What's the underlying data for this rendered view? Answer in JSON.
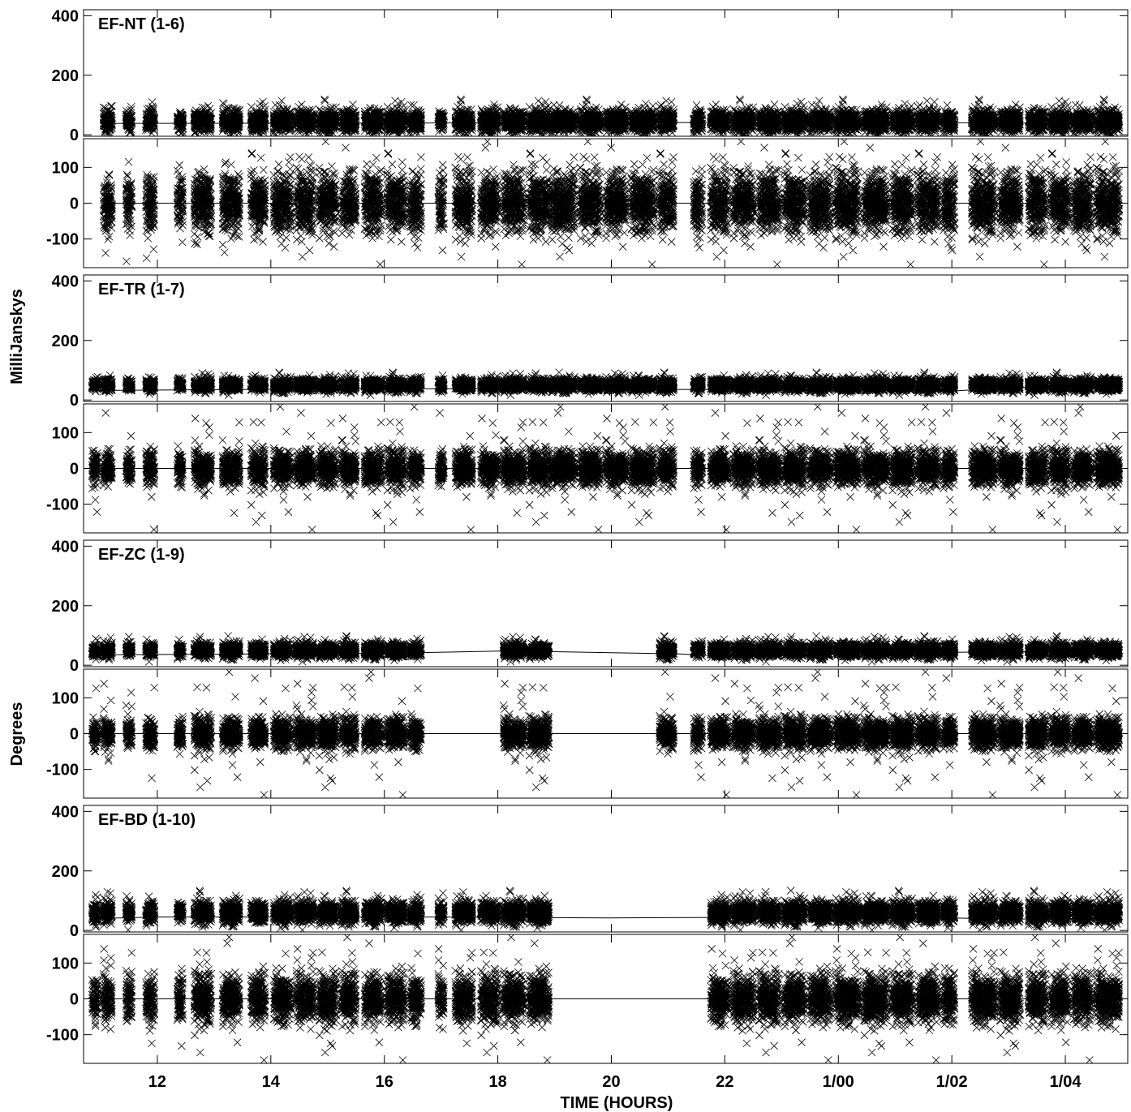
{
  "chart_data": {
    "type": "scatter",
    "xlabel": "TIME (HOURS)",
    "ylabel_amplitude": "MilliJanskys",
    "ylabel_phase": "Degrees",
    "x_unit": "hours",
    "xlim": [
      10.7,
      29.1
    ],
    "x_ticks": [
      {
        "value": 12,
        "label": "12"
      },
      {
        "value": 14,
        "label": "14"
      },
      {
        "value": 16,
        "label": "16"
      },
      {
        "value": 18,
        "label": "18"
      },
      {
        "value": 20,
        "label": "20"
      },
      {
        "value": 22,
        "label": "22"
      },
      {
        "value": 24,
        "label": "1/00"
      },
      {
        "value": 26,
        "label": "1/02"
      },
      {
        "value": 28,
        "label": "1/04"
      }
    ],
    "amp_ylim": [
      -5,
      420
    ],
    "amp_ticks": [
      {
        "value": 0,
        "label": "0"
      },
      {
        "value": 200,
        "label": "200"
      },
      {
        "value": 400,
        "label": "400"
      }
    ],
    "phase_ylim": [
      -180,
      180
    ],
    "phase_ticks": [
      {
        "value": -100,
        "label": "-100"
      },
      {
        "value": 0,
        "label": "0"
      },
      {
        "value": 100,
        "label": "100"
      }
    ],
    "marker": "x",
    "color": "#000000",
    "panels": [
      {
        "baseline": "EF-NT (1-6)",
        "scans": [
          [
            11.05,
            11.2
          ],
          [
            11.45,
            11.55
          ],
          [
            11.8,
            11.95
          ],
          [
            12.35,
            12.45
          ],
          [
            12.65,
            12.95
          ],
          [
            13.15,
            13.45
          ],
          [
            13.65,
            13.9
          ],
          [
            14.05,
            14.35
          ],
          [
            14.45,
            14.75
          ],
          [
            14.85,
            15.15
          ],
          [
            15.25,
            15.5
          ],
          [
            15.65,
            15.95
          ],
          [
            16.05,
            16.35
          ],
          [
            16.45,
            16.65
          ],
          [
            16.95,
            17.05
          ],
          [
            17.25,
            17.55
          ],
          [
            17.7,
            18.0
          ],
          [
            18.1,
            18.45
          ],
          [
            18.55,
            18.9
          ],
          [
            18.95,
            19.35
          ],
          [
            19.45,
            19.8
          ],
          [
            19.9,
            20.25
          ],
          [
            20.35,
            20.75
          ],
          [
            20.85,
            21.1
          ],
          [
            21.45,
            21.6
          ],
          [
            21.75,
            22.05
          ],
          [
            22.15,
            22.5
          ],
          [
            22.6,
            22.95
          ],
          [
            23.05,
            23.4
          ],
          [
            23.5,
            23.85
          ],
          [
            23.95,
            24.35
          ],
          [
            24.45,
            24.85
          ],
          [
            24.95,
            25.3
          ],
          [
            25.4,
            25.75
          ],
          [
            25.85,
            26.05
          ],
          [
            26.35,
            26.75
          ],
          [
            26.85,
            27.2
          ],
          [
            27.35,
            27.65
          ],
          [
            27.75,
            28.05
          ],
          [
            28.15,
            28.45
          ],
          [
            28.55,
            28.95
          ]
        ],
        "amp_mean": 45,
        "amp_spread": 38,
        "model_amp": [
          [
            11.05,
            38
          ],
          [
            18.0,
            40
          ],
          [
            24.0,
            42
          ],
          [
            29.0,
            38
          ]
        ],
        "phase_spread": 70
      },
      {
        "baseline": "EF-TR (1-7)",
        "scans": [
          [
            10.85,
            10.95
          ],
          [
            11.05,
            11.2
          ],
          [
            11.45,
            11.55
          ],
          [
            11.8,
            11.95
          ],
          [
            12.35,
            12.45
          ],
          [
            12.65,
            12.95
          ],
          [
            13.15,
            13.45
          ],
          [
            13.65,
            13.9
          ],
          [
            14.05,
            14.35
          ],
          [
            14.45,
            14.75
          ],
          [
            14.85,
            15.15
          ],
          [
            15.25,
            15.5
          ],
          [
            15.65,
            15.95
          ],
          [
            16.05,
            16.35
          ],
          [
            16.45,
            16.65
          ],
          [
            16.95,
            17.05
          ],
          [
            17.25,
            17.55
          ],
          [
            17.7,
            18.0
          ],
          [
            18.1,
            18.45
          ],
          [
            18.55,
            18.9
          ],
          [
            18.95,
            19.35
          ],
          [
            19.45,
            19.8
          ],
          [
            19.9,
            20.25
          ],
          [
            20.35,
            20.75
          ],
          [
            20.85,
            21.1
          ],
          [
            21.45,
            21.6
          ],
          [
            21.75,
            22.05
          ],
          [
            22.15,
            22.5
          ],
          [
            22.6,
            22.95
          ],
          [
            23.05,
            23.4
          ],
          [
            23.5,
            23.85
          ],
          [
            23.95,
            24.35
          ],
          [
            24.45,
            24.85
          ],
          [
            24.95,
            25.3
          ],
          [
            25.4,
            25.75
          ],
          [
            25.85,
            26.05
          ],
          [
            26.35,
            26.75
          ],
          [
            26.85,
            27.2
          ],
          [
            27.35,
            27.65
          ],
          [
            27.75,
            28.05
          ],
          [
            28.15,
            28.45
          ],
          [
            28.55,
            28.95
          ]
        ],
        "amp_mean": 50,
        "amp_spread": 22,
        "model_amp": [
          [
            10.9,
            32
          ],
          [
            16.0,
            38
          ],
          [
            22.0,
            35
          ],
          [
            26.0,
            30
          ],
          [
            27.0,
            42
          ],
          [
            29.0,
            40
          ]
        ],
        "phase_spread": 40
      },
      {
        "baseline": "EF-ZC (1-9)",
        "scans": [
          [
            10.85,
            10.95
          ],
          [
            11.05,
            11.2
          ],
          [
            11.45,
            11.55
          ],
          [
            11.8,
            11.95
          ],
          [
            12.35,
            12.45
          ],
          [
            12.65,
            12.95
          ],
          [
            13.15,
            13.45
          ],
          [
            13.65,
            13.9
          ],
          [
            14.05,
            14.35
          ],
          [
            14.45,
            14.75
          ],
          [
            14.85,
            15.15
          ],
          [
            15.25,
            15.5
          ],
          [
            15.65,
            15.95
          ],
          [
            16.05,
            16.35
          ],
          [
            16.45,
            16.65
          ],
          [
            18.1,
            18.45
          ],
          [
            18.55,
            18.9
          ],
          [
            20.85,
            21.1
          ],
          [
            21.45,
            21.6
          ],
          [
            21.75,
            22.05
          ],
          [
            22.15,
            22.5
          ],
          [
            22.6,
            22.95
          ],
          [
            23.05,
            23.4
          ],
          [
            23.5,
            23.85
          ],
          [
            23.95,
            24.35
          ],
          [
            24.45,
            24.85
          ],
          [
            24.95,
            25.3
          ],
          [
            25.4,
            25.75
          ],
          [
            25.85,
            26.05
          ],
          [
            26.35,
            26.75
          ],
          [
            26.85,
            27.2
          ],
          [
            27.35,
            27.65
          ],
          [
            27.75,
            28.05
          ],
          [
            28.15,
            28.45
          ],
          [
            28.55,
            28.95
          ]
        ],
        "amp_mean": 50,
        "amp_spread": 25,
        "model_amp": [
          [
            10.9,
            35
          ],
          [
            16.0,
            40
          ],
          [
            18.2,
            48
          ],
          [
            20.0,
            42
          ],
          [
            21.2,
            38
          ],
          [
            22.0,
            30
          ],
          [
            24.0,
            40
          ],
          [
            27.0,
            45
          ],
          [
            29.0,
            45
          ]
        ],
        "phase_spread": 35
      },
      {
        "baseline": "EF-BD (1-10)",
        "scans": [
          [
            10.85,
            10.95
          ],
          [
            11.05,
            11.2
          ],
          [
            11.45,
            11.55
          ],
          [
            11.8,
            11.95
          ],
          [
            12.35,
            12.45
          ],
          [
            12.65,
            12.95
          ],
          [
            13.15,
            13.45
          ],
          [
            13.65,
            13.9
          ],
          [
            14.05,
            14.35
          ],
          [
            14.45,
            14.75
          ],
          [
            14.85,
            15.15
          ],
          [
            15.25,
            15.5
          ],
          [
            15.65,
            15.95
          ],
          [
            16.05,
            16.35
          ],
          [
            16.45,
            16.65
          ],
          [
            16.95,
            17.05
          ],
          [
            17.25,
            17.55
          ],
          [
            17.7,
            18.0
          ],
          [
            18.1,
            18.45
          ],
          [
            18.55,
            18.9
          ],
          [
            21.75,
            22.05
          ],
          [
            22.15,
            22.5
          ],
          [
            22.6,
            22.95
          ],
          [
            23.05,
            23.4
          ],
          [
            23.5,
            23.85
          ],
          [
            23.95,
            24.35
          ],
          [
            24.45,
            24.85
          ],
          [
            24.95,
            25.3
          ],
          [
            25.4,
            25.75
          ],
          [
            25.85,
            26.05
          ],
          [
            26.35,
            26.75
          ],
          [
            26.85,
            27.2
          ],
          [
            27.35,
            27.65
          ],
          [
            27.75,
            28.05
          ],
          [
            28.15,
            28.45
          ],
          [
            28.55,
            28.95
          ]
        ],
        "amp_mean": 60,
        "amp_spread": 38,
        "model_amp": [
          [
            10.9,
            40
          ],
          [
            12.0,
            45
          ],
          [
            14.0,
            45
          ],
          [
            17.0,
            45
          ],
          [
            20.0,
            42
          ],
          [
            24.0,
            45
          ],
          [
            26.0,
            42
          ],
          [
            27.0,
            38
          ],
          [
            29.0,
            40
          ]
        ],
        "phase_spread": 55
      }
    ]
  }
}
